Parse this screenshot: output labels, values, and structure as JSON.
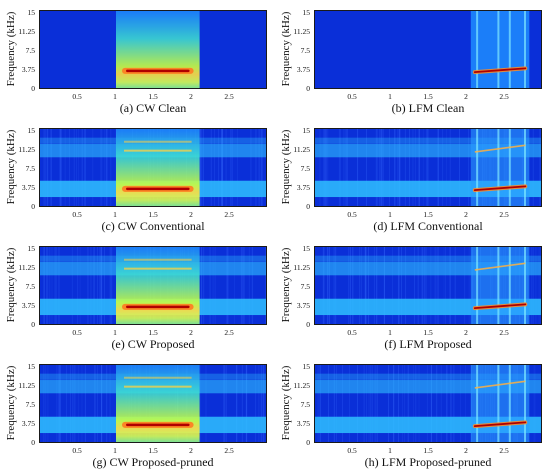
{
  "figure": {
    "ylabel": "Frequency (kHz)",
    "yticks": [
      "15",
      "11.25",
      "7.5",
      "3.75",
      "0"
    ],
    "xticks": [
      "0.5",
      "1",
      "1.5",
      "2",
      "2.5"
    ]
  },
  "panels": [
    {
      "caption": "(a) CW Clean",
      "signal": "cw",
      "noise": "clean",
      "bands": false
    },
    {
      "caption": "(b) LFM Clean",
      "signal": "lfm",
      "noise": "clean",
      "bands": false
    },
    {
      "caption": "(c) CW Conventional",
      "signal": "cw",
      "noise": "noisy",
      "bands": true
    },
    {
      "caption": "(d) LFM Conventional",
      "signal": "lfm",
      "noise": "noisy",
      "bands": true
    },
    {
      "caption": "(e) CW Proposed",
      "signal": "cw",
      "noise": "noisy",
      "bands": true
    },
    {
      "caption": "(f) LFM Proposed",
      "signal": "lfm",
      "noise": "noisy",
      "bands": true
    },
    {
      "caption": "(g) CW Proposed-pruned",
      "signal": "cw",
      "noise": "noisy",
      "bands": true
    },
    {
      "caption": "(h) LFM Proposed-pruned",
      "signal": "lfm",
      "noise": "noisy",
      "bands": true
    }
  ],
  "colors": {
    "background": "#0a2fd8",
    "cw_glow": "#ffff40",
    "line": "#b00000",
    "band": "#2fc0ff",
    "frame": "#1a1a1a"
  }
}
